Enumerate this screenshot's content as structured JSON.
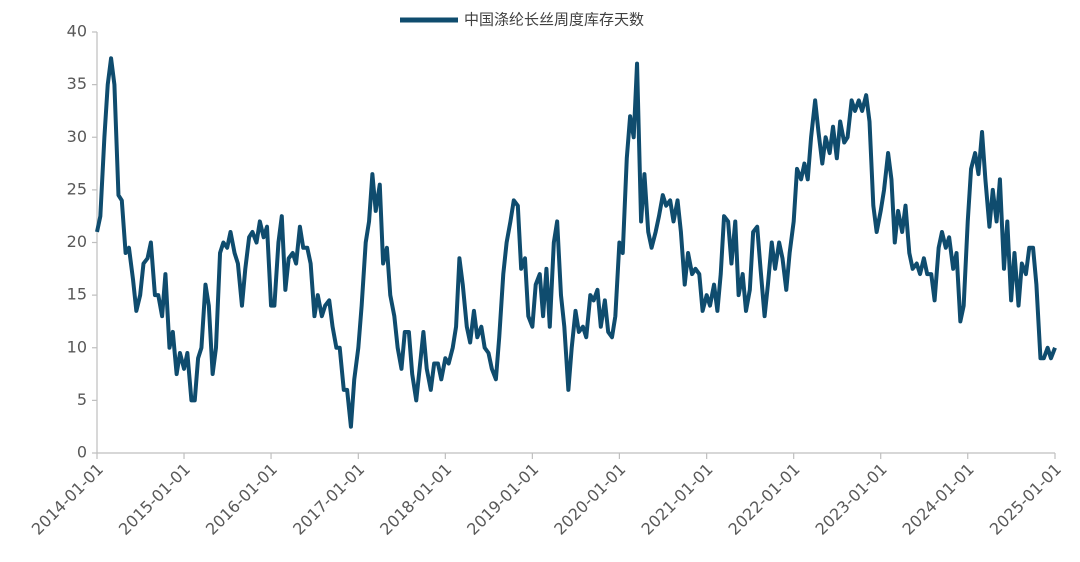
{
  "chart_data": {
    "type": "line",
    "x": [
      "2014-01-01",
      "2014-01-15",
      "2014-02-01",
      "2014-02-15",
      "2014-03-01",
      "2014-03-15",
      "2014-04-01",
      "2014-04-15",
      "2014-05-01",
      "2014-05-15",
      "2014-06-01",
      "2014-06-15",
      "2014-07-01",
      "2014-07-15",
      "2014-08-01",
      "2014-08-15",
      "2014-09-01",
      "2014-09-15",
      "2014-10-01",
      "2014-10-15",
      "2014-11-01",
      "2014-11-15",
      "2014-12-01",
      "2014-12-15",
      "2015-01-01",
      "2015-01-15",
      "2015-02-01",
      "2015-02-15",
      "2015-03-01",
      "2015-03-15",
      "2015-04-01",
      "2015-04-15",
      "2015-05-01",
      "2015-05-15",
      "2015-06-01",
      "2015-06-15",
      "2015-07-01",
      "2015-07-15",
      "2015-08-01",
      "2015-08-15",
      "2015-09-01",
      "2015-09-15",
      "2015-10-01",
      "2015-10-15",
      "2015-11-01",
      "2015-11-15",
      "2015-12-01",
      "2015-12-15",
      "2016-01-01",
      "2016-01-15",
      "2016-02-01",
      "2016-02-15",
      "2016-03-01",
      "2016-03-15",
      "2016-04-01",
      "2016-04-15",
      "2016-05-01",
      "2016-05-15",
      "2016-06-01",
      "2016-06-15",
      "2016-07-01",
      "2016-07-15",
      "2016-08-01",
      "2016-08-15",
      "2016-09-01",
      "2016-09-15",
      "2016-10-01",
      "2016-10-15",
      "2016-11-01",
      "2016-11-15",
      "2016-12-01",
      "2016-12-15",
      "2017-01-01",
      "2017-01-15",
      "2017-02-01",
      "2017-02-15",
      "2017-03-01",
      "2017-03-15",
      "2017-04-01",
      "2017-04-15",
      "2017-05-01",
      "2017-05-15",
      "2017-06-01",
      "2017-06-15",
      "2017-07-01",
      "2017-07-15",
      "2017-08-01",
      "2017-08-15",
      "2017-09-01",
      "2017-09-15",
      "2017-10-01",
      "2017-10-15",
      "2017-11-01",
      "2017-11-15",
      "2017-12-01",
      "2017-12-15",
      "2018-01-01",
      "2018-01-15",
      "2018-02-01",
      "2018-02-15",
      "2018-03-01",
      "2018-03-15",
      "2018-04-01",
      "2018-04-15",
      "2018-05-01",
      "2018-05-15",
      "2018-06-01",
      "2018-06-15",
      "2018-07-01",
      "2018-07-15",
      "2018-08-01",
      "2018-08-15",
      "2018-09-01",
      "2018-09-15",
      "2018-10-01",
      "2018-10-15",
      "2018-11-01",
      "2018-11-15",
      "2018-12-01",
      "2018-12-15",
      "2019-01-01",
      "2019-01-15",
      "2019-02-01",
      "2019-02-15",
      "2019-03-01",
      "2019-03-15",
      "2019-04-01",
      "2019-04-15",
      "2019-05-01",
      "2019-05-15",
      "2019-06-01",
      "2019-06-15",
      "2019-07-01",
      "2019-07-15",
      "2019-08-01",
      "2019-08-15",
      "2019-09-01",
      "2019-09-15",
      "2019-10-01",
      "2019-10-15",
      "2019-11-01",
      "2019-11-15",
      "2019-12-01",
      "2019-12-15",
      "2020-01-01",
      "2020-01-15",
      "2020-02-01",
      "2020-02-15",
      "2020-03-01",
      "2020-03-15",
      "2020-04-01",
      "2020-04-15",
      "2020-05-01",
      "2020-05-15",
      "2020-06-01",
      "2020-06-15",
      "2020-07-01",
      "2020-07-15",
      "2020-08-01",
      "2020-08-15",
      "2020-09-01",
      "2020-09-15",
      "2020-10-01",
      "2020-10-15",
      "2020-11-01",
      "2020-11-15",
      "2020-12-01",
      "2020-12-15",
      "2021-01-01",
      "2021-01-15",
      "2021-02-01",
      "2021-02-15",
      "2021-03-01",
      "2021-03-15",
      "2021-04-01",
      "2021-04-15",
      "2021-05-01",
      "2021-05-15",
      "2021-06-01",
      "2021-06-15",
      "2021-07-01",
      "2021-07-15",
      "2021-08-01",
      "2021-08-15",
      "2021-09-01",
      "2021-09-15",
      "2021-10-01",
      "2021-10-15",
      "2021-11-01",
      "2021-11-15",
      "2021-12-01",
      "2021-12-15",
      "2022-01-01",
      "2022-01-15",
      "2022-02-01",
      "2022-02-15",
      "2022-03-01",
      "2022-03-15",
      "2022-04-01",
      "2022-04-15",
      "2022-05-01",
      "2022-05-15",
      "2022-06-01",
      "2022-06-15",
      "2022-07-01",
      "2022-07-15",
      "2022-08-01",
      "2022-08-15",
      "2022-09-01",
      "2022-09-15",
      "2022-10-01",
      "2022-10-15",
      "2022-11-01",
      "2022-11-15",
      "2022-12-01",
      "2022-12-15",
      "2023-01-01",
      "2023-01-15",
      "2023-02-01",
      "2023-02-15",
      "2023-03-01",
      "2023-03-15",
      "2023-04-01",
      "2023-04-15",
      "2023-05-01",
      "2023-05-15",
      "2023-06-01",
      "2023-06-15",
      "2023-07-01",
      "2023-07-15",
      "2023-08-01",
      "2023-08-15",
      "2023-09-01",
      "2023-09-15",
      "2023-10-01",
      "2023-10-15",
      "2023-11-01",
      "2023-11-15",
      "2023-12-01",
      "2023-12-15",
      "2024-01-01",
      "2024-01-15",
      "2024-02-01",
      "2024-02-15",
      "2024-03-01",
      "2024-03-15",
      "2024-04-01",
      "2024-04-15",
      "2024-05-01",
      "2024-05-15",
      "2024-06-01",
      "2024-06-15",
      "2024-07-01",
      "2024-07-15",
      "2024-08-01",
      "2024-08-15",
      "2024-09-01",
      "2024-09-15",
      "2024-10-01",
      "2024-10-15",
      "2024-11-01",
      "2024-11-15",
      "2024-12-01",
      "2024-12-15",
      "2025-01-01"
    ],
    "series": [
      {
        "name": "中国涤纶长丝周度库存天数",
        "color": "#0f4c6e",
        "values": [
          21,
          22.5,
          30,
          35,
          37.5,
          35,
          24.5,
          24,
          19,
          19.5,
          16.5,
          13.5,
          15,
          18,
          18.5,
          20,
          15,
          15,
          13,
          17,
          10,
          11.5,
          7.5,
          9.5,
          8,
          9.5,
          5,
          5,
          9,
          10,
          16,
          14,
          7.5,
          10,
          19,
          20,
          19.5,
          21,
          19,
          18,
          14,
          17.5,
          20.5,
          21,
          20,
          22,
          20.5,
          21.5,
          14,
          14,
          20,
          22.5,
          15.5,
          18.5,
          19,
          18,
          21.5,
          19.5,
          19.5,
          18,
          13,
          15,
          13,
          14,
          14.5,
          12,
          10,
          10,
          6,
          6,
          2.5,
          7,
          10,
          14,
          20,
          22,
          26.5,
          23,
          25.5,
          18,
          19.5,
          15,
          13,
          10,
          8,
          11.5,
          11.5,
          7.5,
          5,
          8,
          11.5,
          8,
          6,
          8.5,
          8.5,
          7,
          9,
          8.5,
          10,
          12,
          18.5,
          16,
          12,
          10.5,
          13.5,
          11,
          12,
          10,
          9.5,
          8,
          7,
          11,
          17,
          20,
          22,
          24,
          23.5,
          17.5,
          18.5,
          13,
          12,
          16,
          17,
          13,
          17.5,
          12,
          20,
          22,
          15,
          12,
          6,
          10,
          13.5,
          11.5,
          12,
          11,
          15,
          14.5,
          15.5,
          12,
          14.5,
          11.5,
          11,
          13,
          20,
          19,
          28,
          32,
          30,
          37,
          22,
          26.5,
          21,
          19.5,
          21,
          22.5,
          24.5,
          23.5,
          24,
          22,
          24,
          21,
          16,
          19,
          17,
          17.5,
          17,
          13.5,
          15,
          14,
          16,
          13.5,
          17,
          22.5,
          22,
          18,
          22,
          15,
          17,
          13.5,
          15.5,
          21,
          21.5,
          17.5,
          13,
          16,
          20,
          17.5,
          20,
          18.5,
          15.5,
          19,
          22,
          27,
          26,
          27.5,
          26,
          30,
          33.5,
          30.5,
          27.5,
          30,
          28.5,
          31,
          28,
          31.5,
          29.5,
          30,
          33.5,
          32.5,
          33.5,
          32.5,
          34,
          31.5,
          23.5,
          21,
          23,
          25,
          28.5,
          26,
          20,
          23,
          21,
          23.5,
          19,
          17.5,
          18,
          17,
          18.5,
          17,
          17,
          14.5,
          19.5,
          21,
          19.5,
          20.5,
          17.5,
          19,
          12.5,
          14,
          22,
          27,
          28.5,
          26.5,
          30.5,
          26,
          21.5,
          25,
          22,
          26,
          17.5,
          22,
          14.5,
          19,
          14,
          18,
          17,
          19.5,
          19.5,
          16,
          9,
          9,
          10,
          9,
          10
        ]
      }
    ],
    "xlim": [
      "2014-01-01",
      "2025-01-01"
    ],
    "xticks": [
      "2014-01-01",
      "2015-01-01",
      "2016-01-01",
      "2017-01-01",
      "2018-01-01",
      "2019-01-01",
      "2020-01-01",
      "2021-01-01",
      "2022-01-01",
      "2023-01-01",
      "2024-01-01",
      "2025-01-01"
    ],
    "ylim": [
      0,
      40
    ],
    "yticks": [
      0,
      5,
      10,
      15,
      20,
      25,
      30,
      35,
      40
    ],
    "legend": "top",
    "grid": false
  }
}
